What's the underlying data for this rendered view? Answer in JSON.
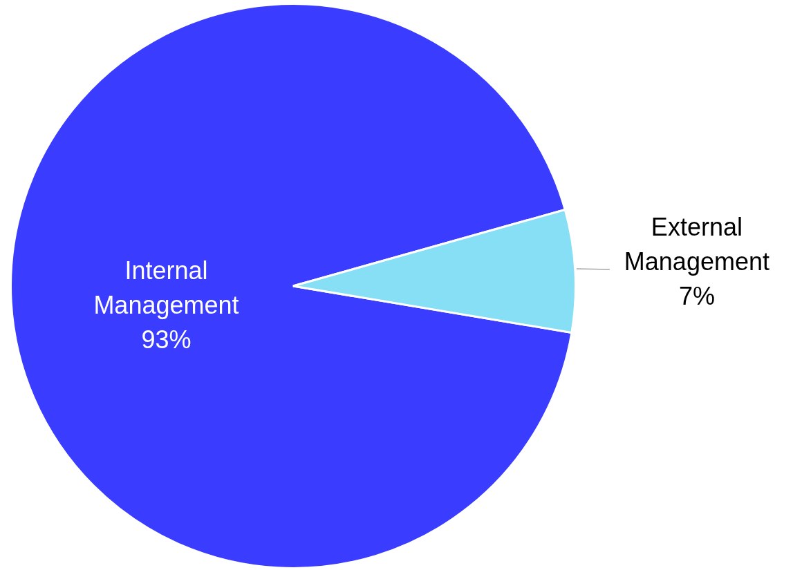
{
  "chart_data": {
    "type": "pie",
    "categories": [
      "Internal Management",
      "External Management"
    ],
    "values": [
      93,
      7
    ],
    "colors": [
      "#3a3dff",
      "#87dff5"
    ],
    "value_labels": [
      "93%",
      "7%"
    ],
    "legend": false
  }
}
